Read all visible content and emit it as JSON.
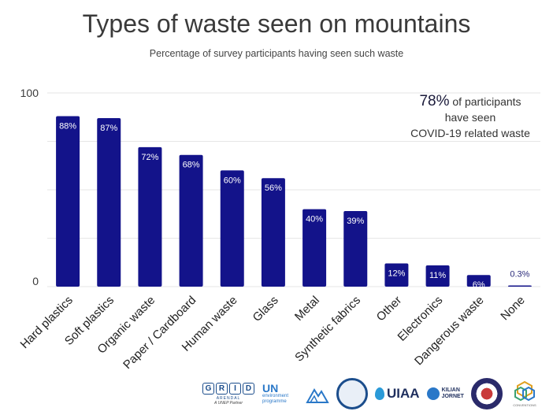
{
  "chart_data": {
    "type": "bar",
    "title": "Types of waste seen on mountains",
    "subtitle": "Percentage of survey participants having seen such waste",
    "categories": [
      "Hard plastics",
      "Soft plastics",
      "Organic waste",
      "Paper / Cardboard",
      "Human waste",
      "Glass",
      "Metal",
      "Synthetic fabrics",
      "Other",
      "Electronics",
      "Dangerous waste",
      "None"
    ],
    "values": [
      88,
      87,
      72,
      68,
      60,
      56,
      40,
      39,
      12,
      11,
      6,
      0.3
    ],
    "value_labels": [
      "88%",
      "87%",
      "72%",
      "68%",
      "60%",
      "56%",
      "40%",
      "39%",
      "12%",
      "11%",
      "6%",
      "0.3%"
    ],
    "ylim": [
      0,
      100
    ],
    "yticks": [
      "100",
      "0"
    ],
    "xlabel": "",
    "ylabel": "",
    "grid": true,
    "bar_color": "#13138a",
    "grid_color": "#e6e6e6"
  },
  "annotation": {
    "highlight": "78%",
    "text_line1": " of participants",
    "text_line2": "have seen",
    "text_line3": "COVID-19 related waste"
  },
  "footer": {
    "grid_letters": [
      "G",
      "R",
      "I",
      "D"
    ],
    "grid_sub": "ARENDAL",
    "grid_partner": "A UNEP Partner",
    "un_main": "UN",
    "un_sub1": "environment",
    "un_sub2": "programme",
    "uiaa": "UIAA",
    "kilian1": "KILIAN",
    "kilian2": "JORNET",
    "conventions": "CONVENTIONS"
  }
}
